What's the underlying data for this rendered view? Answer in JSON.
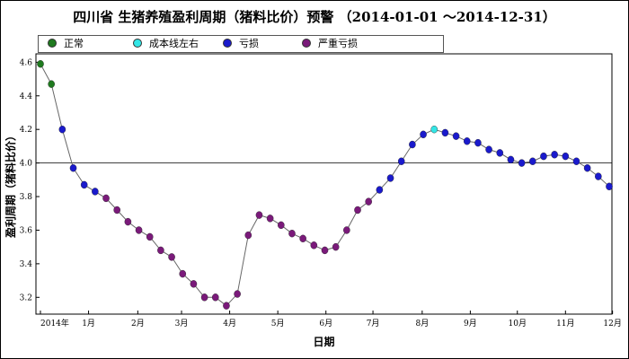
{
  "title": "四川省 生猪养殖盈利周期（猪料比价）预警 （2014-01-01 ～2014-12-31）",
  "legend": [
    {
      "label": "正常",
      "color": "#1f7a1f"
    },
    {
      "label": "成本线左右",
      "color": "#33e6e6"
    },
    {
      "label": "亏损",
      "color": "#1a1acc"
    },
    {
      "label": "严重亏损",
      "color": "#7a1a7a"
    }
  ],
  "chart_data": {
    "type": "line",
    "title": "四川省 生猪养殖盈利周期（猪料比价）预警 （2014-01-01 ～2014-12-31）",
    "xlabel": "日期",
    "ylabel": "盈利周期（猪料比价）",
    "ylim": [
      3.1,
      4.65
    ],
    "y_ticks": [
      "3.2",
      "3.4",
      "3.6",
      "3.8",
      "4.0",
      "4.2",
      "4.4",
      "4.6"
    ],
    "x_ticks": [
      {
        "label": "2014年",
        "week": 0
      },
      {
        "label": "1月",
        "week": 4.4
      },
      {
        "label": "2月",
        "week": 8.9
      },
      {
        "label": "3月",
        "week": 12.9
      },
      {
        "label": "4月",
        "week": 17.3
      },
      {
        "label": "5月",
        "week": 21.7
      },
      {
        "label": "6月",
        "week": 26.1
      },
      {
        "label": "7月",
        "week": 30.4
      },
      {
        "label": "8月",
        "week": 34.9
      },
      {
        "label": "9月",
        "week": 39.3
      },
      {
        "label": "10月",
        "week": 43.6
      },
      {
        "label": "11月",
        "week": 48.0
      },
      {
        "label": "12月",
        "week": 52.3
      }
    ],
    "reference_line": 4.0,
    "grid": false,
    "legend_position": "top-left",
    "categories_legend": [
      "正常",
      "成本线左右",
      "亏损",
      "严重亏损"
    ],
    "points": [
      {
        "week": 0,
        "value": 4.59,
        "category": "正常"
      },
      {
        "week": 1,
        "value": 4.47,
        "category": "正常"
      },
      {
        "week": 2,
        "value": 4.2,
        "category": "亏损"
      },
      {
        "week": 3,
        "value": 3.97,
        "category": "亏损"
      },
      {
        "week": 4,
        "value": 3.87,
        "category": "亏损"
      },
      {
        "week": 5,
        "value": 3.83,
        "category": "亏损"
      },
      {
        "week": 6,
        "value": 3.79,
        "category": "严重亏损"
      },
      {
        "week": 7,
        "value": 3.72,
        "category": "严重亏损"
      },
      {
        "week": 8,
        "value": 3.65,
        "category": "严重亏损"
      },
      {
        "week": 9,
        "value": 3.6,
        "category": "严重亏损"
      },
      {
        "week": 10,
        "value": 3.56,
        "category": "严重亏损"
      },
      {
        "week": 11,
        "value": 3.48,
        "category": "严重亏损"
      },
      {
        "week": 12,
        "value": 3.44,
        "category": "严重亏损"
      },
      {
        "week": 13,
        "value": 3.34,
        "category": "严重亏损"
      },
      {
        "week": 14,
        "value": 3.28,
        "category": "严重亏损"
      },
      {
        "week": 15,
        "value": 3.2,
        "category": "严重亏损"
      },
      {
        "week": 16,
        "value": 3.2,
        "category": "严重亏损"
      },
      {
        "week": 17,
        "value": 3.15,
        "category": "严重亏损"
      },
      {
        "week": 18,
        "value": 3.22,
        "category": "严重亏损"
      },
      {
        "week": 19,
        "value": 3.57,
        "category": "严重亏损"
      },
      {
        "week": 20,
        "value": 3.69,
        "category": "严重亏损"
      },
      {
        "week": 21,
        "value": 3.67,
        "category": "严重亏损"
      },
      {
        "week": 22,
        "value": 3.63,
        "category": "严重亏损"
      },
      {
        "week": 23,
        "value": 3.58,
        "category": "严重亏损"
      },
      {
        "week": 24,
        "value": 3.55,
        "category": "严重亏损"
      },
      {
        "week": 25,
        "value": 3.51,
        "category": "严重亏损"
      },
      {
        "week": 26,
        "value": 3.48,
        "category": "严重亏损"
      },
      {
        "week": 27,
        "value": 3.5,
        "category": "严重亏损"
      },
      {
        "week": 28,
        "value": 3.6,
        "category": "严重亏损"
      },
      {
        "week": 29,
        "value": 3.72,
        "category": "严重亏损"
      },
      {
        "week": 30,
        "value": 3.77,
        "category": "严重亏损"
      },
      {
        "week": 31,
        "value": 3.84,
        "category": "亏损"
      },
      {
        "week": 32,
        "value": 3.91,
        "category": "亏损"
      },
      {
        "week": 33,
        "value": 4.01,
        "category": "亏损"
      },
      {
        "week": 34,
        "value": 4.11,
        "category": "亏损"
      },
      {
        "week": 35,
        "value": 4.17,
        "category": "亏损"
      },
      {
        "week": 36,
        "value": 4.2,
        "category": "成本线左右"
      },
      {
        "week": 37,
        "value": 4.18,
        "category": "亏损"
      },
      {
        "week": 38,
        "value": 4.16,
        "category": "亏损"
      },
      {
        "week": 39,
        "value": 4.13,
        "category": "亏损"
      },
      {
        "week": 40,
        "value": 4.12,
        "category": "亏损"
      },
      {
        "week": 41,
        "value": 4.08,
        "category": "亏损"
      },
      {
        "week": 42,
        "value": 4.06,
        "category": "亏损"
      },
      {
        "week": 43,
        "value": 4.02,
        "category": "亏损"
      },
      {
        "week": 44,
        "value": 4.0,
        "category": "亏损"
      },
      {
        "week": 45,
        "value": 4.01,
        "category": "亏损"
      },
      {
        "week": 46,
        "value": 4.04,
        "category": "亏损"
      },
      {
        "week": 47,
        "value": 4.05,
        "category": "亏损"
      },
      {
        "week": 48,
        "value": 4.04,
        "category": "亏损"
      },
      {
        "week": 49,
        "value": 4.01,
        "category": "亏损"
      },
      {
        "week": 50,
        "value": 3.97,
        "category": "亏损"
      },
      {
        "week": 51,
        "value": 3.92,
        "category": "亏损"
      },
      {
        "week": 52,
        "value": 3.86,
        "category": "亏损"
      }
    ]
  }
}
